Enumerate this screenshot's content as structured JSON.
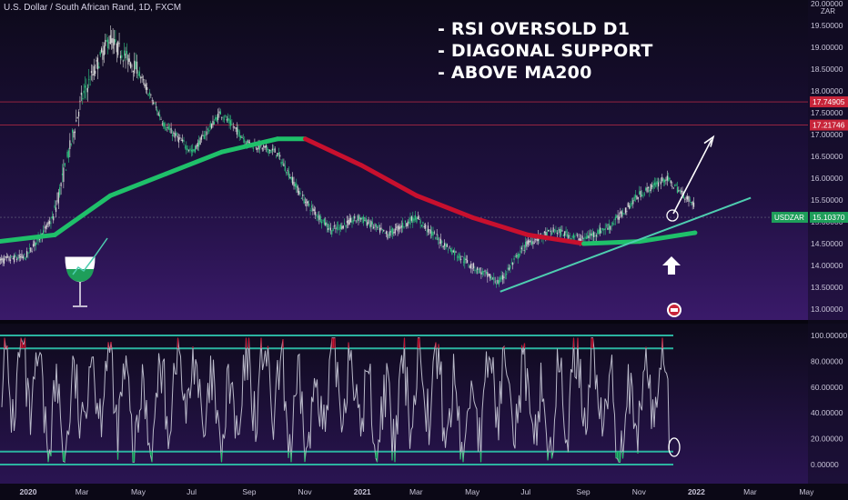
{
  "header": {
    "symbol_title": "U.S. Dollar / South African Rand, 1D, FXCM"
  },
  "annotations": [
    "- RSI OVERSOLD D1",
    "- DIAGONAL SUPPORT",
    "- ABOVE MA200"
  ],
  "currency_label": "ZAR",
  "ticker_tag": "USDZAR",
  "colors": {
    "background_top": "#0d0a1a",
    "background_bottom": "#3a1a6a",
    "candle_up": "#2ec27e",
    "candle_down": "#d8d8d8",
    "ma_up": "#1fc06a",
    "ma_down": "#c8102e",
    "trendline": "#4ecdb0",
    "resistance": "#e0304a",
    "rsi_line": "#b8b8c8",
    "rsi_band": "#2bb3a0",
    "ticker_green": "#1e9e5a",
    "price_red": "#c8253a"
  },
  "icons": [
    "trend-arrow-icon",
    "up-arrow-icon",
    "logo-badge-icon",
    "circle-marker-icon",
    "wineglass-logo-icon"
  ],
  "chart_data": [
    {
      "type": "candlestick",
      "title": "U.S. Dollar / South African Rand, 1D, FXCM",
      "x_ticks": [
        "2020",
        "Mar",
        "May",
        "Jul",
        "Sep",
        "Nov",
        "2021",
        "Mar",
        "May",
        "Jul",
        "Sep",
        "Nov",
        "2022",
        "Mar",
        "May"
      ],
      "y_ticks": [
        "20.00000",
        "19.50000",
        "19.00000",
        "18.50000",
        "18.00000",
        "17.50000",
        "17.00000",
        "16.50000",
        "16.00000",
        "15.50000",
        "15.00000",
        "14.50000",
        "14.00000",
        "13.50000",
        "13.00000"
      ],
      "ylim": [
        13.0,
        20.0
      ],
      "close_series": [
        {
          "x": "2020-01",
          "y": 14.2
        },
        {
          "x": "2020-02",
          "y": 15.1
        },
        {
          "x": "2020-03",
          "y": 17.8
        },
        {
          "x": "2020-04",
          "y": 19.2
        },
        {
          "x": "2020-05",
          "y": 18.5
        },
        {
          "x": "2020-06",
          "y": 17.2
        },
        {
          "x": "2020-07",
          "y": 16.6
        },
        {
          "x": "2020-08",
          "y": 17.5
        },
        {
          "x": "2020-09",
          "y": 16.8
        },
        {
          "x": "2020-10",
          "y": 16.6
        },
        {
          "x": "2020-11",
          "y": 15.5
        },
        {
          "x": "2020-12",
          "y": 14.8
        },
        {
          "x": "2021-01",
          "y": 15.1
        },
        {
          "x": "2021-02",
          "y": 14.7
        },
        {
          "x": "2021-03",
          "y": 15.1
        },
        {
          "x": "2021-04",
          "y": 14.5
        },
        {
          "x": "2021-05",
          "y": 14.0
        },
        {
          "x": "2021-06",
          "y": 13.6
        },
        {
          "x": "2021-07",
          "y": 14.5
        },
        {
          "x": "2021-08",
          "y": 14.8
        },
        {
          "x": "2021-09",
          "y": 14.6
        },
        {
          "x": "2021-10",
          "y": 14.9
        },
        {
          "x": "2021-11",
          "y": 15.6
        },
        {
          "x": "2021-12",
          "y": 16.0
        },
        {
          "x": "2022-01",
          "y": 15.4
        }
      ],
      "ma200": {
        "name": "MA200",
        "points": [
          {
            "x": "2019-12",
            "y": 14.55
          },
          {
            "x": "2020-02",
            "y": 14.7
          },
          {
            "x": "2020-04",
            "y": 15.6
          },
          {
            "x": "2020-06",
            "y": 16.1
          },
          {
            "x": "2020-08",
            "y": 16.6
          },
          {
            "x": "2020-10",
            "y": 16.9
          },
          {
            "x": "2020-11",
            "y": 16.9
          },
          {
            "x": "2021-01",
            "y": 16.3
          },
          {
            "x": "2021-03",
            "y": 15.6
          },
          {
            "x": "2021-05",
            "y": 15.1
          },
          {
            "x": "2021-07",
            "y": 14.7
          },
          {
            "x": "2021-09",
            "y": 14.5
          },
          {
            "x": "2021-11",
            "y": 14.55
          },
          {
            "x": "2022-01",
            "y": 14.75
          }
        ]
      },
      "horizontal_levels": [
        {
          "value": 17.74905,
          "label": "17.74905"
        },
        {
          "value": 17.21746,
          "label": "17.21746"
        },
        {
          "value": 15.1037,
          "label": "15.10370"
        }
      ],
      "current_price_label": "15.10370",
      "trendline": [
        {
          "x": "2021-06",
          "y": 13.4
        },
        {
          "x": "2022-03",
          "y": 15.55
        }
      ]
    },
    {
      "type": "line",
      "title": "",
      "y_ticks": [
        "100.00000",
        "80.00000",
        "60.00000",
        "40.00000",
        "20.00000",
        "0.00000"
      ],
      "ylim": [
        0,
        100
      ],
      "levels": [
        100,
        90,
        10,
        0
      ],
      "last_value": 12
    }
  ]
}
